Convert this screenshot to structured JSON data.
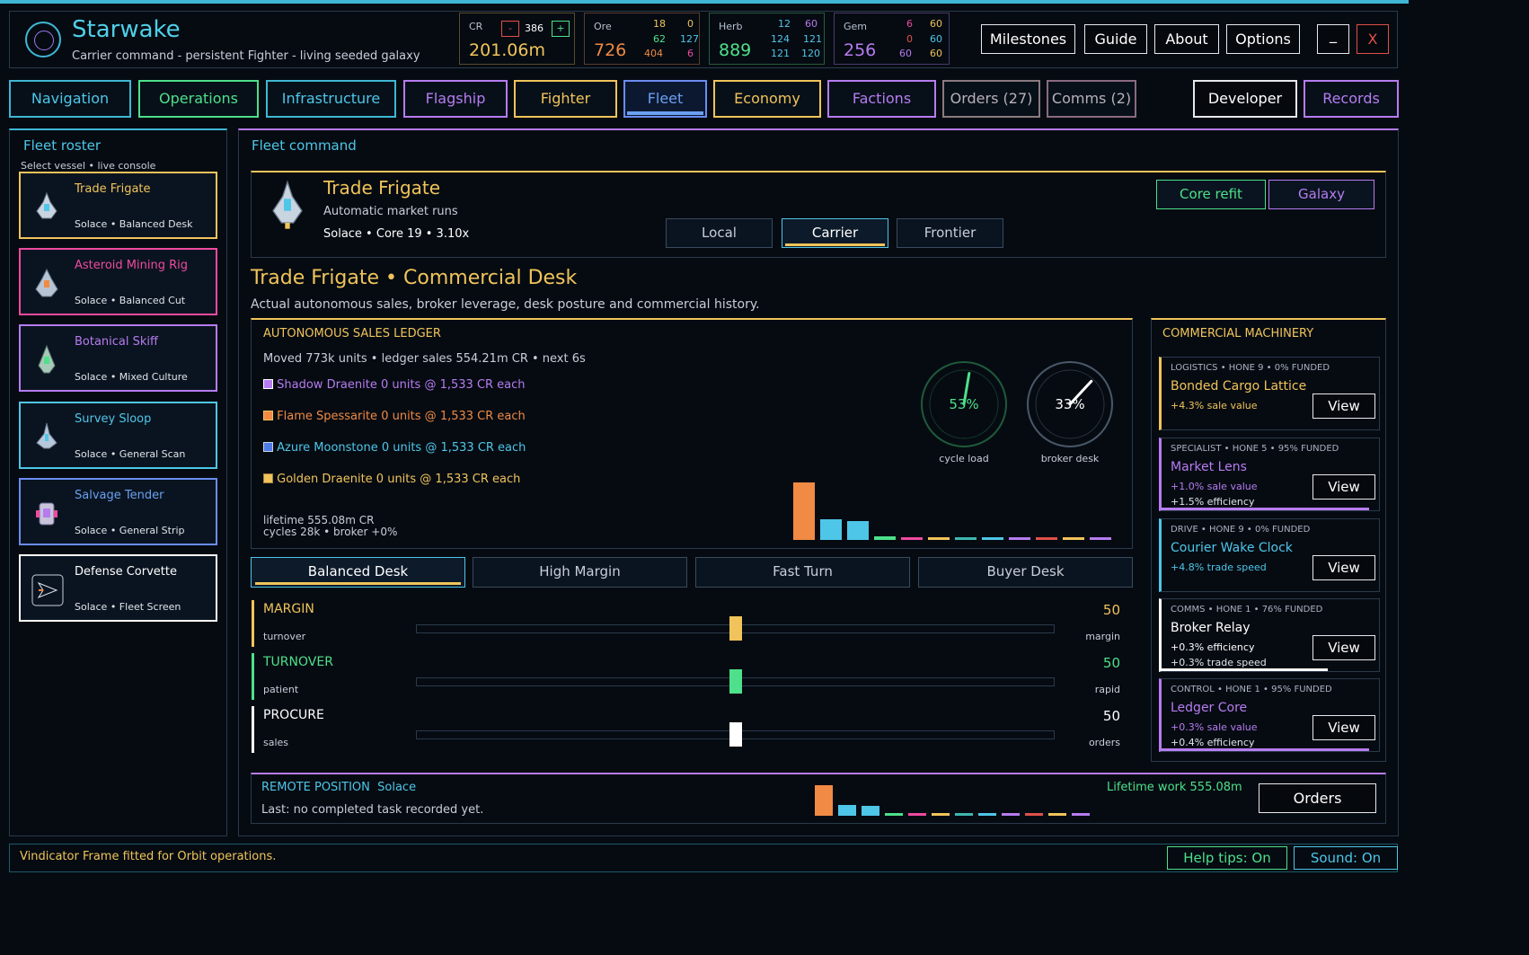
{
  "app": {
    "title": "Starwake",
    "subtitle": "Carrier command - persistent Fighter - living seeded galaxy"
  },
  "resources": {
    "cr": {
      "label": "CR",
      "minus": "-",
      "step": "386",
      "plus": "+",
      "value": "201.06m"
    },
    "ore": {
      "label": "Ore",
      "value": "726",
      "n1": "18",
      "n2": "0",
      "n3": "62",
      "n4": "127",
      "n5": "404",
      "n6": "6"
    },
    "herb": {
      "label": "Herb",
      "value": "889",
      "n1": "12",
      "n2": "60",
      "n3": "124",
      "n4": "121",
      "n5": "121",
      "n6": "120"
    },
    "gem": {
      "label": "Gem",
      "value": "256",
      "n1": "6",
      "n2": "60",
      "n3": "0",
      "n4": "60",
      "n5": "60",
      "n6": "60"
    }
  },
  "header_buttons": {
    "milestones": "Milestones",
    "guide": "Guide",
    "about": "About",
    "options": "Options",
    "minimize": "_",
    "close": "X"
  },
  "tabs": {
    "navigation": "Navigation",
    "operations": "Operations",
    "infrastructure": "Infrastructure",
    "flagship": "Flagship",
    "fighter": "Fighter",
    "fleet": "Fleet",
    "economy": "Economy",
    "factions": "Factions",
    "orders": "Orders (27)",
    "comms": "Comms (2)",
    "developer": "Developer",
    "records": "Records"
  },
  "roster": {
    "title": "Fleet roster",
    "hint": "Select vessel • live console",
    "ships": [
      {
        "name": "Trade Frigate",
        "meta": "Solace  •  Balanced Desk"
      },
      {
        "name": "Asteroid Mining Rig",
        "meta": "Solace  •  Balanced Cut"
      },
      {
        "name": "Botanical Skiff",
        "meta": "Solace  •  Mixed Culture"
      },
      {
        "name": "Survey Sloop",
        "meta": "Solace  •  General Scan"
      },
      {
        "name": "Salvage Tender",
        "meta": "Solace  •  General Strip"
      },
      {
        "name": "Defense Corvette",
        "meta": "Solace  •  Fleet Screen"
      }
    ]
  },
  "command": {
    "title": "Fleet command",
    "ship_name": "Trade Frigate",
    "ship_desc": "Automatic market runs",
    "ship_meta": "Solace  •  Core 19  •  3.10x",
    "scope": {
      "local": "Local",
      "carrier": "Carrier",
      "frontier": "Frontier"
    },
    "core_refit": "Core refit",
    "galaxy": "Galaxy",
    "section_title": "Trade Frigate • Commercial Desk",
    "section_desc": "Actual autonomous sales, broker leverage, desk posture and commercial history."
  },
  "ledger": {
    "title": "AUTONOMOUS SALES LEDGER",
    "summary": "Moved 773k units  •  ledger sales 554.21m CR  •  next 6s",
    "rows": [
      {
        "text": "Shadow Draenite  0 units  @  1,533 CR each",
        "color": "#b67cf0"
      },
      {
        "text": "Flame Spessarite  0 units  @  1,533 CR each",
        "color": "#f08a44"
      },
      {
        "text": "Azure Moonstone  0 units  @  1,533 CR each",
        "color": "#4ec6e8"
      },
      {
        "text": "Golden Draenite  0 units  @  1,533 CR each",
        "color": "#f0c45a"
      }
    ],
    "lifetime": "lifetime 555.08m CR",
    "cycles": "cycles 28k  •  broker +0%",
    "gauge1": {
      "value": "53%",
      "label": "cycle load",
      "fraction": 0.53
    },
    "gauge2": {
      "value": "33%",
      "label": "broker desk",
      "fraction": 0.33
    }
  },
  "history_bars": [
    {
      "value": 1.0,
      "color": "#f08a44"
    },
    {
      "value": 0.36,
      "color": "#4ec6e8"
    },
    {
      "value": 0.33,
      "color": "#4ec6e8"
    },
    {
      "value": 0.06,
      "color": "#4ee08a"
    },
    {
      "value": 0.05,
      "color": "#f04aa0"
    },
    {
      "value": 0.05,
      "color": "#f0c45a"
    },
    {
      "value": 0.05,
      "color": "#3fb7b0"
    },
    {
      "value": 0.05,
      "color": "#4ec6e8"
    },
    {
      "value": 0.05,
      "color": "#b67cf0"
    },
    {
      "value": 0.05,
      "color": "#e0504a"
    },
    {
      "value": 0.05,
      "color": "#f0c45a"
    },
    {
      "value": 0.05,
      "color": "#b67cf0"
    }
  ],
  "postures": {
    "balanced": "Balanced Desk",
    "high_margin": "High Margin",
    "fast_turn": "Fast Turn",
    "buyer": "Buyer Desk"
  },
  "sliders": [
    {
      "label": "MARGIN",
      "left": "turnover",
      "right": "margin",
      "value": "50",
      "fraction": 0.5,
      "color": "#f0c45a"
    },
    {
      "label": "TURNOVER",
      "left": "patient",
      "right": "rapid",
      "value": "50",
      "fraction": 0.5,
      "color": "#4ee08a"
    },
    {
      "label": "PROCURE",
      "left": "sales",
      "right": "orders",
      "value": "50",
      "fraction": 0.5,
      "color": "#ffffff"
    }
  ],
  "machinery": {
    "title": "COMMERCIAL MACHINERY",
    "cards": [
      {
        "tag": "LOGISTICS  •  HONE 9  •  0% FUNDED",
        "name": "Bonded Cargo Lattice",
        "line1": "+4.3% sale value",
        "line2": "",
        "view": "View",
        "color": "#f0c45a",
        "funded": 0.0
      },
      {
        "tag": "SPECIALIST  •  HONE 5  •  95% FUNDED",
        "name": "Market Lens",
        "line1": "+1.0% sale value",
        "line2": "+1.5% efficiency",
        "view": "View",
        "color": "#b67cf0",
        "funded": 0.95
      },
      {
        "tag": "DRIVE  •  HONE 9  •  0% FUNDED",
        "name": "Courier Wake Clock",
        "line1": "+4.8% trade speed",
        "line2": "",
        "view": "View",
        "color": "#4ec6e8",
        "funded": 0.0
      },
      {
        "tag": "COMMS  •  HONE 1  •  76% FUNDED",
        "name": "Broker Relay",
        "line1": "+0.3% efficiency",
        "line2": "+0.3% trade speed",
        "view": "View",
        "color": "#ffffff",
        "funded": 0.76
      },
      {
        "tag": "CONTROL  •  HONE 1  •  95% FUNDED",
        "name": "Ledger Core",
        "line1": "+0.3% sale value",
        "line2": "+0.4% efficiency",
        "view": "View",
        "color": "#b67cf0",
        "funded": 0.95
      }
    ]
  },
  "remote": {
    "label": "REMOTE POSITION",
    "location": "Solace",
    "last": "Last: no completed task recorded yet.",
    "lifetime": "Lifetime work  555.08m",
    "orders": "Orders"
  },
  "status": {
    "message": "Vindicator Frame fitted for Orbit operations.",
    "help": "Help tips: On",
    "sound": "Sound: On"
  }
}
